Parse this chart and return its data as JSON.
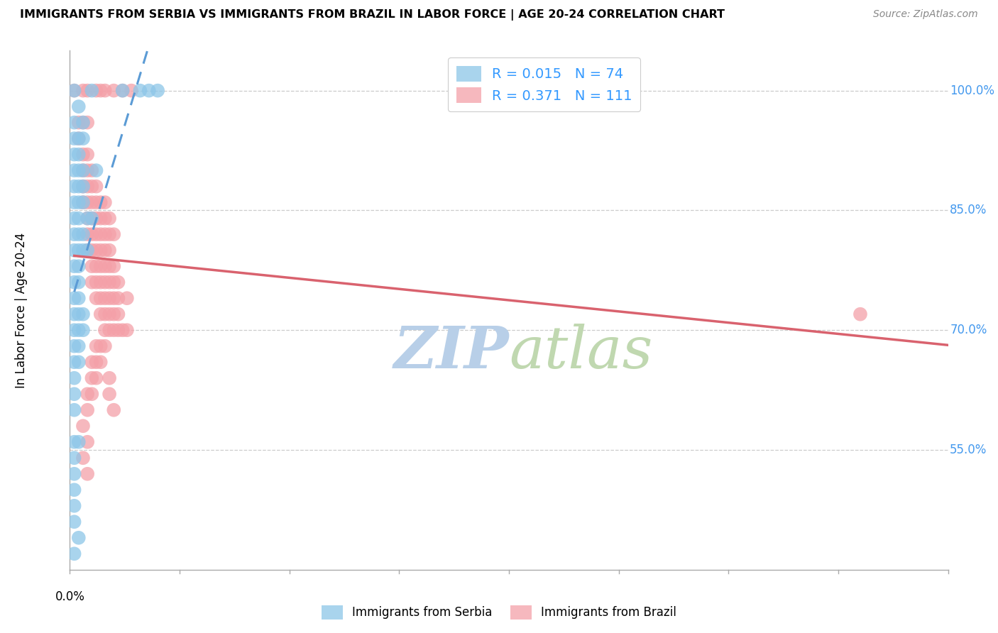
{
  "title": "IMMIGRANTS FROM SERBIA VS IMMIGRANTS FROM BRAZIL IN LABOR FORCE | AGE 20-24 CORRELATION CHART",
  "source": "Source: ZipAtlas.com",
  "ylabel": "In Labor Force | Age 20-24",
  "ytick_labels": [
    "100.0%",
    "85.0%",
    "70.0%",
    "55.0%"
  ],
  "ytick_values": [
    1.0,
    0.85,
    0.7,
    0.55
  ],
  "xlim": [
    0.0,
    0.2
  ],
  "ylim": [
    0.4,
    1.05
  ],
  "serbia_color": "#8dc6e8",
  "brazil_color": "#f4a0a8",
  "serbia_R": 0.015,
  "serbia_N": 74,
  "brazil_R": 0.371,
  "brazil_N": 111,
  "legend_label_serbia": "Immigrants from Serbia",
  "legend_label_brazil": "Immigrants from Brazil",
  "serbia_scatter": [
    [
      0.001,
      1.0
    ],
    [
      0.005,
      1.0
    ],
    [
      0.012,
      1.0
    ],
    [
      0.016,
      1.0
    ],
    [
      0.018,
      1.0
    ],
    [
      0.02,
      1.0
    ],
    [
      0.002,
      0.98
    ],
    [
      0.001,
      0.96
    ],
    [
      0.003,
      0.96
    ],
    [
      0.001,
      0.94
    ],
    [
      0.002,
      0.94
    ],
    [
      0.003,
      0.94
    ],
    [
      0.001,
      0.92
    ],
    [
      0.002,
      0.92
    ],
    [
      0.001,
      0.9
    ],
    [
      0.002,
      0.9
    ],
    [
      0.003,
      0.9
    ],
    [
      0.006,
      0.9
    ],
    [
      0.001,
      0.88
    ],
    [
      0.002,
      0.88
    ],
    [
      0.003,
      0.88
    ],
    [
      0.001,
      0.86
    ],
    [
      0.002,
      0.86
    ],
    [
      0.003,
      0.86
    ],
    [
      0.001,
      0.84
    ],
    [
      0.002,
      0.84
    ],
    [
      0.004,
      0.84
    ],
    [
      0.005,
      0.84
    ],
    [
      0.001,
      0.82
    ],
    [
      0.002,
      0.82
    ],
    [
      0.003,
      0.82
    ],
    [
      0.001,
      0.8
    ],
    [
      0.002,
      0.8
    ],
    [
      0.003,
      0.8
    ],
    [
      0.004,
      0.8
    ],
    [
      0.001,
      0.78
    ],
    [
      0.002,
      0.78
    ],
    [
      0.001,
      0.76
    ],
    [
      0.002,
      0.76
    ],
    [
      0.001,
      0.74
    ],
    [
      0.002,
      0.74
    ],
    [
      0.001,
      0.72
    ],
    [
      0.002,
      0.72
    ],
    [
      0.003,
      0.72
    ],
    [
      0.001,
      0.7
    ],
    [
      0.002,
      0.7
    ],
    [
      0.003,
      0.7
    ],
    [
      0.001,
      0.68
    ],
    [
      0.002,
      0.68
    ],
    [
      0.001,
      0.66
    ],
    [
      0.002,
      0.66
    ],
    [
      0.001,
      0.64
    ],
    [
      0.001,
      0.62
    ],
    [
      0.001,
      0.6
    ],
    [
      0.001,
      0.56
    ],
    [
      0.002,
      0.56
    ],
    [
      0.001,
      0.54
    ],
    [
      0.001,
      0.52
    ],
    [
      0.001,
      0.5
    ],
    [
      0.001,
      0.48
    ],
    [
      0.001,
      0.46
    ],
    [
      0.002,
      0.44
    ],
    [
      0.001,
      0.42
    ]
  ],
  "brazil_scatter": [
    [
      0.001,
      1.0
    ],
    [
      0.003,
      1.0
    ],
    [
      0.004,
      1.0
    ],
    [
      0.006,
      1.0
    ],
    [
      0.007,
      1.0
    ],
    [
      0.008,
      1.0
    ],
    [
      0.01,
      1.0
    ],
    [
      0.012,
      1.0
    ],
    [
      0.014,
      1.0
    ],
    [
      0.002,
      0.96
    ],
    [
      0.003,
      0.96
    ],
    [
      0.004,
      0.96
    ],
    [
      0.002,
      0.94
    ],
    [
      0.003,
      0.92
    ],
    [
      0.004,
      0.92
    ],
    [
      0.003,
      0.9
    ],
    [
      0.004,
      0.9
    ],
    [
      0.005,
      0.9
    ],
    [
      0.003,
      0.88
    ],
    [
      0.004,
      0.88
    ],
    [
      0.005,
      0.88
    ],
    [
      0.006,
      0.88
    ],
    [
      0.003,
      0.86
    ],
    [
      0.004,
      0.86
    ],
    [
      0.005,
      0.86
    ],
    [
      0.006,
      0.86
    ],
    [
      0.007,
      0.86
    ],
    [
      0.008,
      0.86
    ],
    [
      0.004,
      0.84
    ],
    [
      0.005,
      0.84
    ],
    [
      0.006,
      0.84
    ],
    [
      0.007,
      0.84
    ],
    [
      0.008,
      0.84
    ],
    [
      0.009,
      0.84
    ],
    [
      0.004,
      0.82
    ],
    [
      0.005,
      0.82
    ],
    [
      0.006,
      0.82
    ],
    [
      0.007,
      0.82
    ],
    [
      0.008,
      0.82
    ],
    [
      0.009,
      0.82
    ],
    [
      0.01,
      0.82
    ],
    [
      0.004,
      0.8
    ],
    [
      0.005,
      0.8
    ],
    [
      0.006,
      0.8
    ],
    [
      0.007,
      0.8
    ],
    [
      0.008,
      0.8
    ],
    [
      0.009,
      0.8
    ],
    [
      0.005,
      0.78
    ],
    [
      0.006,
      0.78
    ],
    [
      0.007,
      0.78
    ],
    [
      0.008,
      0.78
    ],
    [
      0.009,
      0.78
    ],
    [
      0.01,
      0.78
    ],
    [
      0.005,
      0.76
    ],
    [
      0.006,
      0.76
    ],
    [
      0.007,
      0.76
    ],
    [
      0.008,
      0.76
    ],
    [
      0.009,
      0.76
    ],
    [
      0.01,
      0.76
    ],
    [
      0.011,
      0.76
    ],
    [
      0.006,
      0.74
    ],
    [
      0.007,
      0.74
    ],
    [
      0.008,
      0.74
    ],
    [
      0.009,
      0.74
    ],
    [
      0.01,
      0.74
    ],
    [
      0.011,
      0.74
    ],
    [
      0.013,
      0.74
    ],
    [
      0.007,
      0.72
    ],
    [
      0.008,
      0.72
    ],
    [
      0.009,
      0.72
    ],
    [
      0.01,
      0.72
    ],
    [
      0.011,
      0.72
    ],
    [
      0.18,
      0.72
    ],
    [
      0.008,
      0.7
    ],
    [
      0.009,
      0.7
    ],
    [
      0.01,
      0.7
    ],
    [
      0.011,
      0.7
    ],
    [
      0.012,
      0.7
    ],
    [
      0.013,
      0.7
    ],
    [
      0.006,
      0.68
    ],
    [
      0.007,
      0.68
    ],
    [
      0.008,
      0.68
    ],
    [
      0.005,
      0.66
    ],
    [
      0.006,
      0.66
    ],
    [
      0.007,
      0.66
    ],
    [
      0.005,
      0.64
    ],
    [
      0.006,
      0.64
    ],
    [
      0.004,
      0.62
    ],
    [
      0.005,
      0.62
    ],
    [
      0.004,
      0.6
    ],
    [
      0.003,
      0.58
    ],
    [
      0.004,
      0.56
    ],
    [
      0.003,
      0.54
    ],
    [
      0.004,
      0.52
    ],
    [
      0.009,
      0.64
    ],
    [
      0.009,
      0.62
    ],
    [
      0.01,
      0.6
    ]
  ],
  "grid_color": "#cccccc",
  "trendline_serbia_color": "#5b9bd5",
  "trendline_brazil_color": "#d9626e",
  "watermark_zip": "ZIP",
  "watermark_atlas": "atlas",
  "watermark_color_zip": "#b8cfe8",
  "watermark_color_atlas": "#c0d8b0"
}
